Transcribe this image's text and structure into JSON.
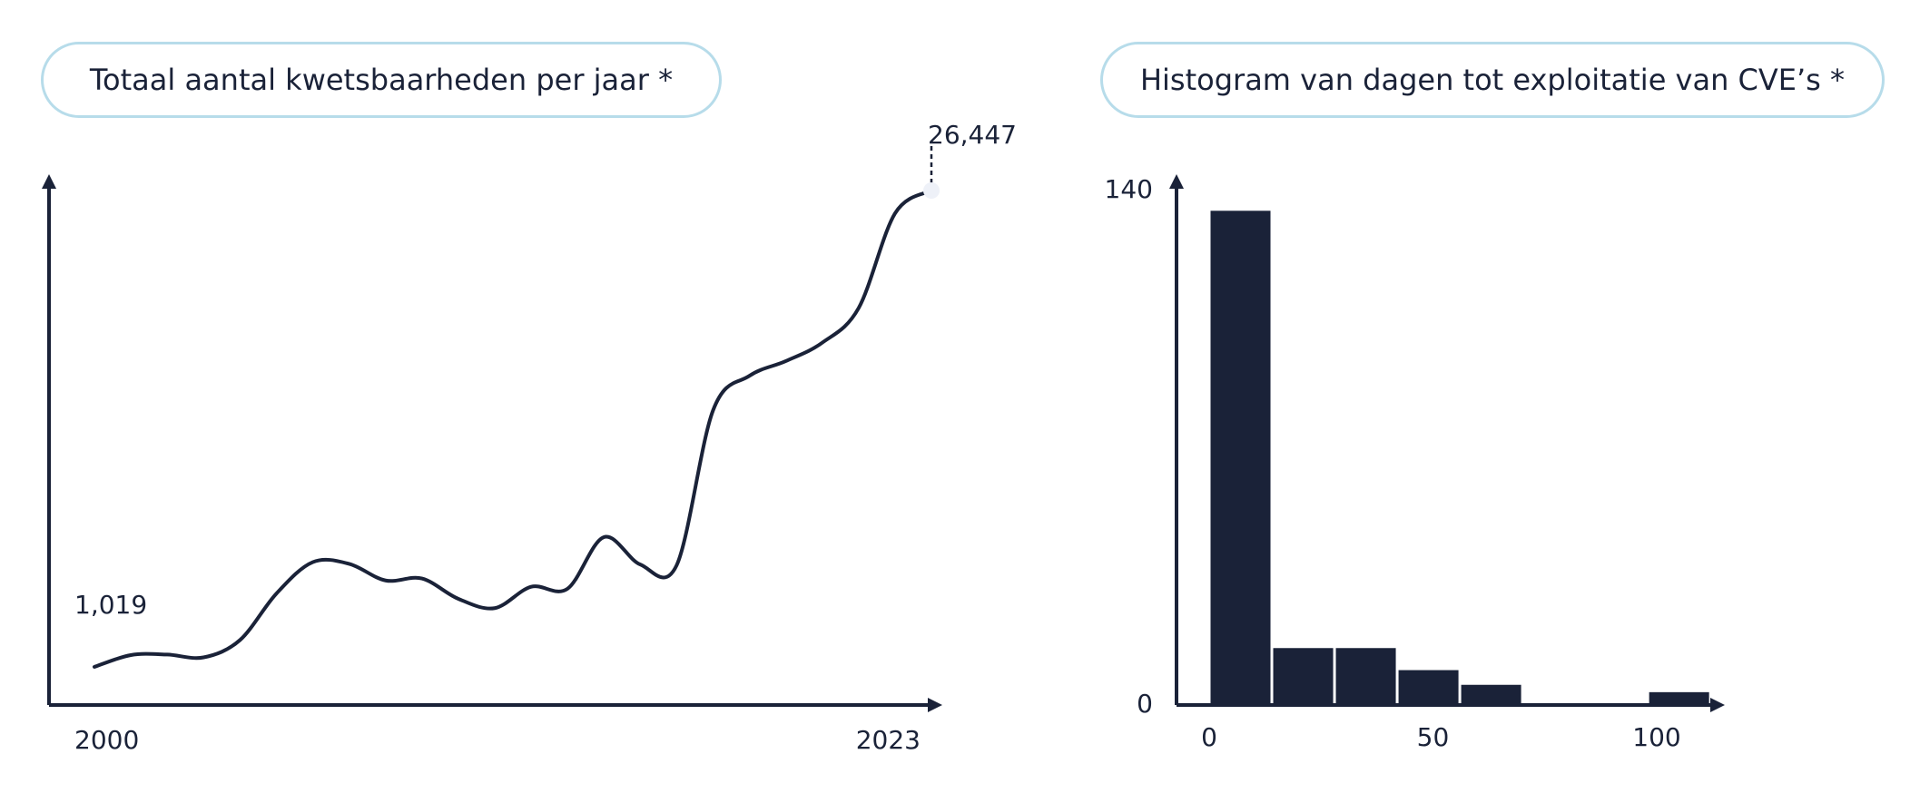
{
  "colors": {
    "ink": "#1a2238",
    "pill_border": "#b7dcea",
    "endpoint_marker": "#eef1f8"
  },
  "chart_data": [
    {
      "type": "line",
      "title": "Totaal aantal kwetsbaarheden per jaar *",
      "x": [
        2000,
        2001,
        2002,
        2003,
        2004,
        2005,
        2006,
        2007,
        2008,
        2009,
        2010,
        2011,
        2012,
        2013,
        2014,
        2015,
        2016,
        2017,
        2018,
        2019,
        2020,
        2021,
        2022,
        2023
      ],
      "values": [
        1019,
        1650,
        1677,
        1527,
        2451,
        4932,
        6610,
        6520,
        5632,
        5736,
        4653,
        4155,
        5297,
        5191,
        7946,
        6484,
        6447,
        14714,
        16557,
        17344,
        18325,
        20171,
        25227,
        26447
      ],
      "x_tick_labels": [
        "2000",
        "2023"
      ],
      "annotations": [
        {
          "label": "1,019",
          "x": 2000,
          "value": 1019
        },
        {
          "label": "26,447",
          "x": 2023,
          "value": 26447
        }
      ],
      "xlim": [
        2000,
        2023
      ],
      "ylim": [
        0,
        26447
      ],
      "grid": false,
      "legend": "none"
    },
    {
      "type": "bar",
      "title": "Histogram van dagen tot exploitatie van CVE’s *",
      "bin_width": 14,
      "bins": [
        {
          "start": 0,
          "end": 14,
          "value": 134
        },
        {
          "start": 14,
          "end": 28,
          "value": 15
        },
        {
          "start": 28,
          "end": 42,
          "value": 15
        },
        {
          "start": 42,
          "end": 56,
          "value": 9
        },
        {
          "start": 56,
          "end": 70,
          "value": 5
        },
        {
          "start": 70,
          "end": 84,
          "value": 0
        },
        {
          "start": 84,
          "end": 98,
          "value": 0
        },
        {
          "start": 98,
          "end": 112,
          "value": 3
        }
      ],
      "x_ticks": [
        0,
        50,
        100
      ],
      "x_tick_labels": [
        "0",
        "50",
        "100"
      ],
      "y_ticks": [
        0,
        140
      ],
      "y_tick_labels": [
        "0",
        "140"
      ],
      "xlim": [
        -8,
        115
      ],
      "ylim": [
        0,
        140
      ],
      "grid": false,
      "legend": "none"
    }
  ]
}
